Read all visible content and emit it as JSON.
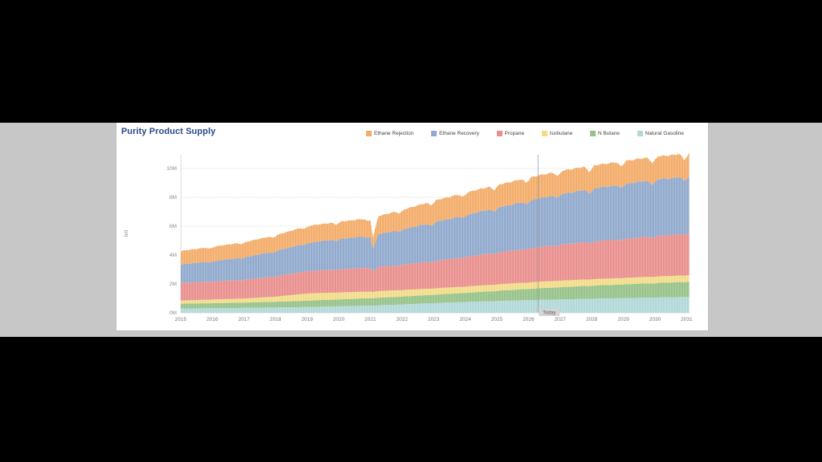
{
  "page": {
    "title": "Purity Product Supply"
  },
  "chart_data": {
    "type": "area",
    "stacked": true,
    "title": "Purity Product Supply",
    "xlabel": "",
    "ylabel": "b/d",
    "x_years": [
      2015,
      2016,
      2017,
      2018,
      2019,
      2020,
      2021,
      2022,
      2023,
      2024,
      2025,
      2026,
      2027,
      2028,
      2029,
      2030,
      2031
    ],
    "ylim": [
      0,
      11
    ],
    "ytick_values": [
      0,
      2,
      4,
      6,
      8,
      10
    ],
    "ytick_labels": [
      "0M",
      "2M",
      "4M",
      "6M",
      "8M",
      "10M"
    ],
    "grid": "horizontal",
    "legend_position": "top",
    "legend_order": [
      "Ethane Rejection",
      "Ethane Recovery",
      "Propane",
      "Isobutane",
      "N Butane",
      "Natural Gasoline"
    ],
    "units": "million barrels per day",
    "series": [
      {
        "name": "Natural Gasoline",
        "color": "#b2d8d8",
        "values": [
          0.3,
          0.32,
          0.34,
          0.37,
          0.4,
          0.45,
          0.5,
          0.58,
          0.67,
          0.75,
          0.82,
          0.88,
          0.93,
          0.98,
          1.02,
          1.06,
          1.1
        ]
      },
      {
        "name": "N Butane",
        "color": "#97c289",
        "values": [
          0.33,
          0.35,
          0.37,
          0.4,
          0.44,
          0.48,
          0.52,
          0.55,
          0.58,
          0.63,
          0.7,
          0.78,
          0.85,
          0.9,
          0.95,
          1.0,
          1.05
        ]
      },
      {
        "name": "Isobutane",
        "color": "#f1dc88",
        "values": [
          0.22,
          0.25,
          0.28,
          0.35,
          0.5,
          0.48,
          0.46,
          0.45,
          0.44,
          0.44,
          0.45,
          0.45,
          0.45,
          0.45,
          0.45,
          0.45,
          0.45
        ]
      },
      {
        "name": "Propane",
        "color": "#e98f8d",
        "values": [
          1.22,
          1.25,
          1.3,
          1.4,
          1.56,
          1.6,
          1.65,
          1.75,
          1.89,
          2.05,
          2.2,
          2.35,
          2.5,
          2.6,
          2.7,
          2.8,
          2.9
        ]
      },
      {
        "name": "Ethane Recovery",
        "color": "#90a9cd",
        "values": [
          1.28,
          1.4,
          1.55,
          1.75,
          1.94,
          2.1,
          2.2,
          2.45,
          2.67,
          2.9,
          3.1,
          3.3,
          3.5,
          3.65,
          3.8,
          3.9,
          3.95
        ]
      },
      {
        "name": "Ethane Rejection",
        "color": "#f3ac69",
        "values": [
          0.94,
          1.0,
          1.05,
          1.1,
          1.17,
          1.2,
          1.22,
          1.35,
          1.5,
          1.55,
          1.58,
          1.6,
          1.6,
          1.6,
          1.6,
          1.6,
          1.6
        ]
      }
    ],
    "annotation": {
      "label": "Today",
      "x_year": 2026.3
    }
  }
}
